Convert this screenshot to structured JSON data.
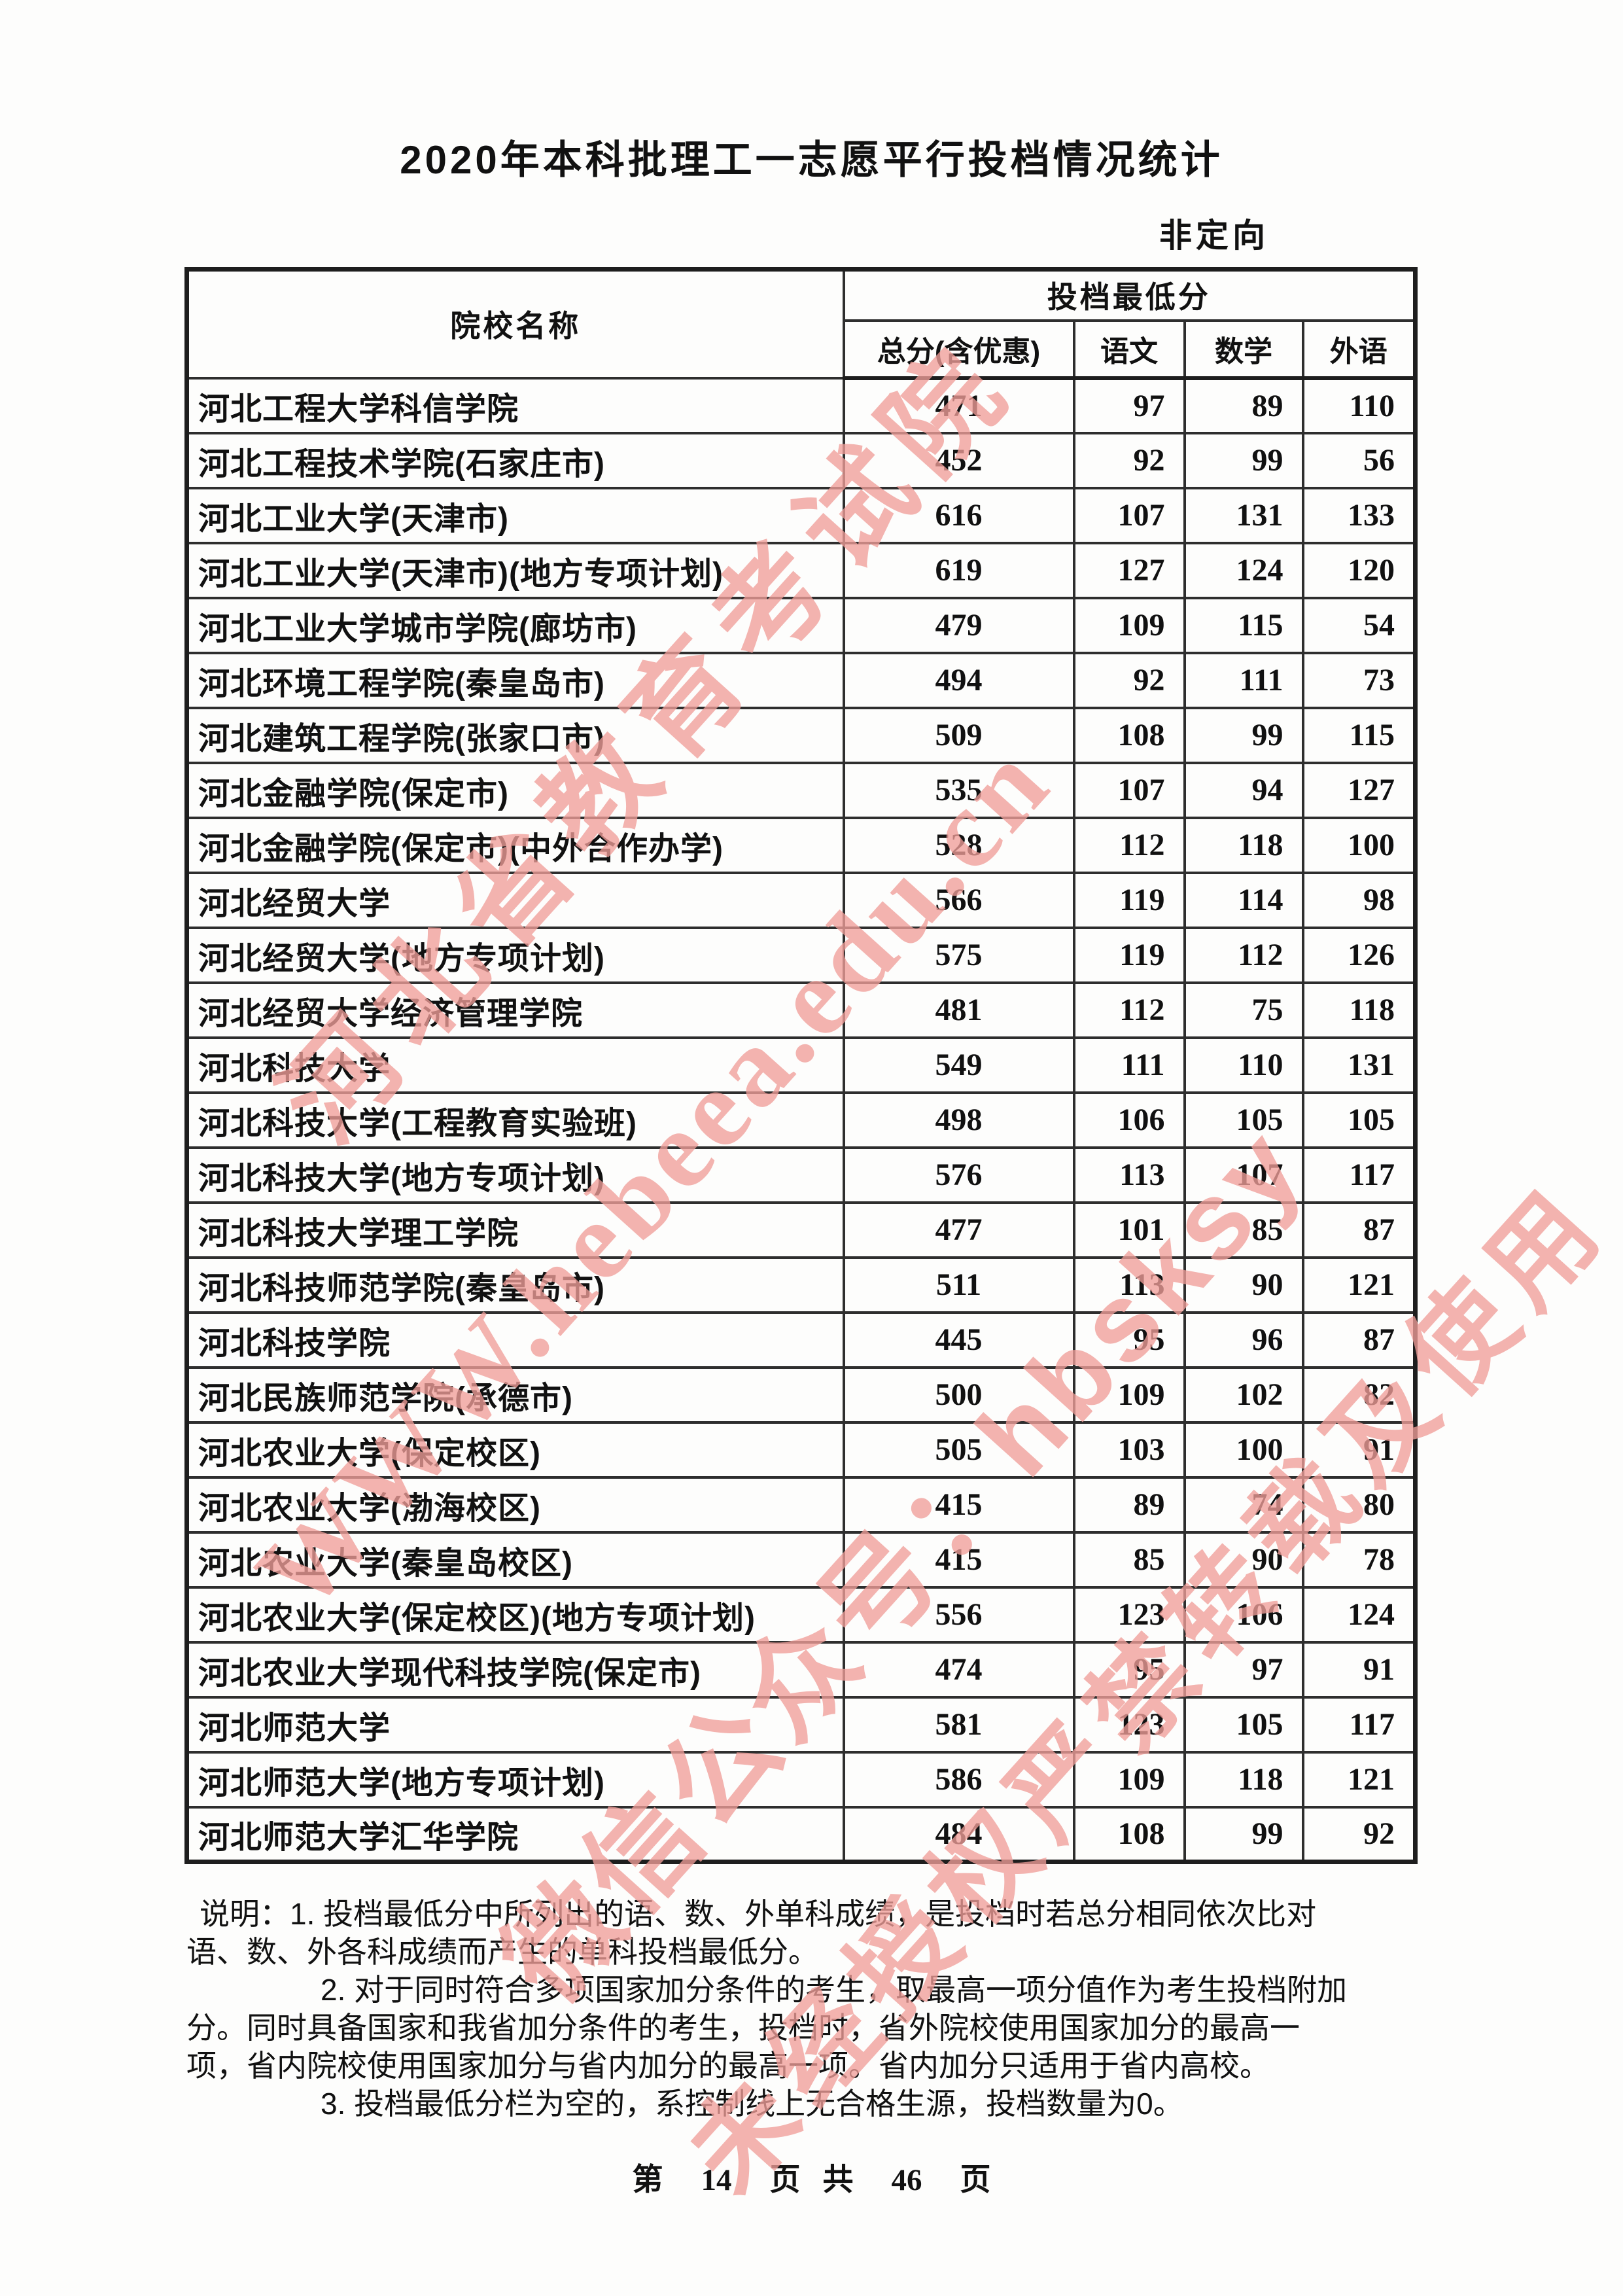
{
  "page": {
    "title": "2020年本科批理工一志愿平行投档情况统计",
    "orientation_label": "非定向",
    "footer_parts": [
      "第",
      "14",
      "页",
      "共",
      "46",
      "页"
    ]
  },
  "table": {
    "col_name_header": "院校名称",
    "group_header": "投档最低分",
    "sub_headers": [
      "总分(含优惠)",
      "语文",
      "数学",
      "外语"
    ],
    "rows": [
      [
        "河北工程大学科信学院",
        "471",
        "97",
        "89",
        "110"
      ],
      [
        "河北工程技术学院(石家庄市)",
        "452",
        "92",
        "99",
        "56"
      ],
      [
        "河北工业大学(天津市)",
        "616",
        "107",
        "131",
        "133"
      ],
      [
        "河北工业大学(天津市)(地方专项计划)",
        "619",
        "127",
        "124",
        "120"
      ],
      [
        "河北工业大学城市学院(廊坊市)",
        "479",
        "109",
        "115",
        "54"
      ],
      [
        "河北环境工程学院(秦皇岛市)",
        "494",
        "92",
        "111",
        "73"
      ],
      [
        "河北建筑工程学院(张家口市)",
        "509",
        "108",
        "99",
        "115"
      ],
      [
        "河北金融学院(保定市)",
        "535",
        "107",
        "94",
        "127"
      ],
      [
        "河北金融学院(保定市)(中外合作办学)",
        "528",
        "112",
        "118",
        "100"
      ],
      [
        "河北经贸大学",
        "566",
        "119",
        "114",
        "98"
      ],
      [
        "河北经贸大学(地方专项计划)",
        "575",
        "119",
        "112",
        "126"
      ],
      [
        "河北经贸大学经济管理学院",
        "481",
        "112",
        "75",
        "118"
      ],
      [
        "河北科技大学",
        "549",
        "111",
        "110",
        "131"
      ],
      [
        "河北科技大学(工程教育实验班)",
        "498",
        "106",
        "105",
        "105"
      ],
      [
        "河北科技大学(地方专项计划)",
        "576",
        "113",
        "107",
        "117"
      ],
      [
        "河北科技大学理工学院",
        "477",
        "101",
        "85",
        "87"
      ],
      [
        "河北科技师范学院(秦皇岛市)",
        "511",
        "113",
        "90",
        "121"
      ],
      [
        "河北科技学院",
        "445",
        "95",
        "96",
        "87"
      ],
      [
        "河北民族师范学院(承德市)",
        "500",
        "109",
        "102",
        "82"
      ],
      [
        "河北农业大学(保定校区)",
        "505",
        "103",
        "100",
        "91"
      ],
      [
        "河北农业大学(渤海校区)",
        "415",
        "89",
        "74",
        "80"
      ],
      [
        "河北农业大学(秦皇岛校区)",
        "415",
        "85",
        "90",
        "78"
      ],
      [
        "河北农业大学(保定校区)(地方专项计划)",
        "556",
        "123",
        "106",
        "124"
      ],
      [
        "河北农业大学现代科技学院(保定市)",
        "474",
        "95",
        "97",
        "91"
      ],
      [
        "河北师范大学",
        "581",
        "123",
        "105",
        "117"
      ],
      [
        "河北师范大学(地方专项计划)",
        "586",
        "109",
        "118",
        "121"
      ],
      [
        "河北师范大学汇华学院",
        "484",
        "108",
        "99",
        "92"
      ]
    ]
  },
  "notes": {
    "lines": [
      "说明：1. 投档最低分中所列出的语、数、外单科成绩，是投档时若总分相同依次比对",
      "语、数、外各科成绩而产生的单科投档最低分。",
      "2. 对于同时符合多项国家加分条件的考生，取最高一项分值作为考生投档附加",
      "分。同时具备国家和我省加分条件的考生，投档时，省外院校使用国家加分的最高一",
      "项，省内院校使用国家加分与省内加分的最高一项。省内加分只适用于省内高校。",
      "3. 投档最低分栏为空的，系控制线上无合格生源，投档数量为0。"
    ]
  },
  "watermarks": [
    "河北省教育考试院",
    "WWW.hebeea.edu.cn",
    "微信公众号：hbsksy",
    "未经授权严禁转载及使用"
  ],
  "colors": {
    "watermark_pink": "#F09E98",
    "border_dark": "#2E2E2E",
    "text": "#111111"
  }
}
